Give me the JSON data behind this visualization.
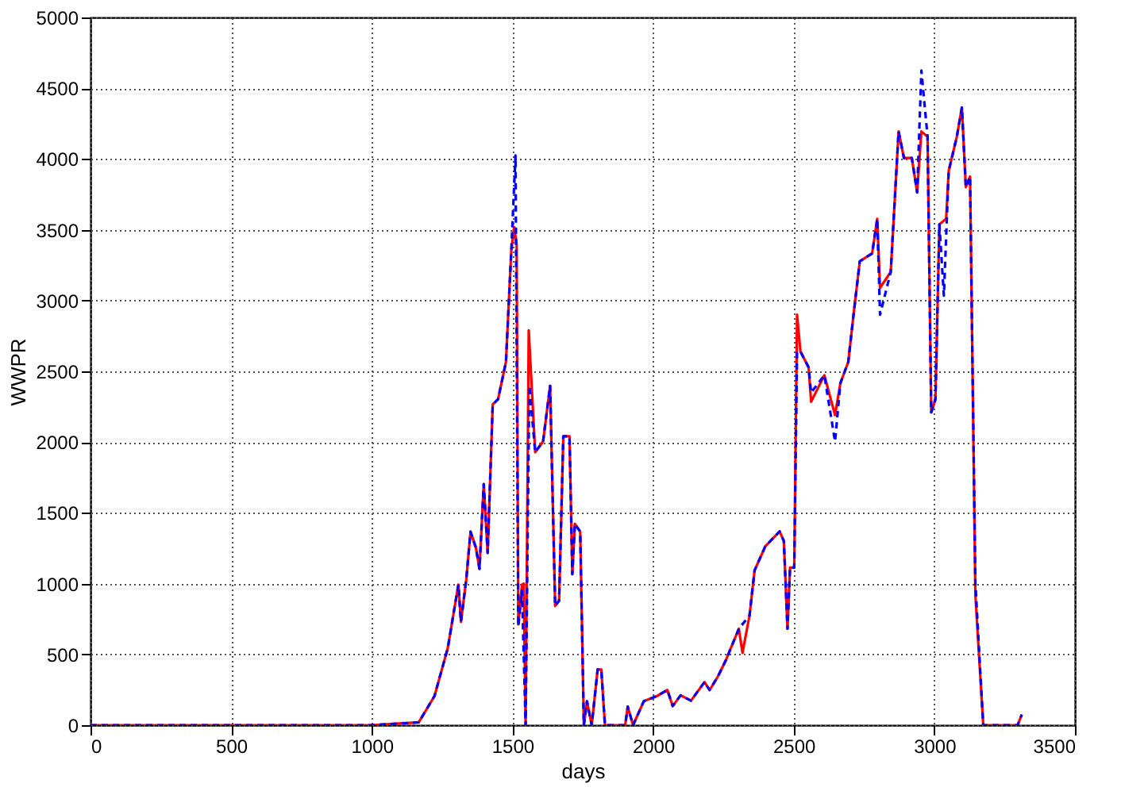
{
  "chart_data": {
    "type": "line",
    "xlabel": "days",
    "ylabel": "WWPR",
    "xlim": [
      0,
      3500
    ],
    "xticks": [
      0,
      500,
      1000,
      1500,
      2000,
      2500,
      3000,
      3500
    ],
    "ylim": [
      0,
      5000
    ],
    "yticks": [
      0,
      500,
      1000,
      1500,
      2000,
      2500,
      3000,
      3500,
      4000,
      4500,
      5000
    ],
    "grid": true,
    "series": [
      {
        "color": "#ff0000",
        "line_style": "solid",
        "x": [
          0,
          998,
          1167,
          1223,
          1270,
          1308,
          1317,
          1336,
          1351,
          1370,
          1383,
          1398,
          1412,
          1430,
          1449,
          1477,
          1496,
          1506,
          1515,
          1521,
          1534,
          1540,
          1547,
          1558,
          1581,
          1609,
          1634,
          1652,
          1666,
          1681,
          1703,
          1713,
          1722,
          1741,
          1754,
          1765,
          1782,
          1803,
          1816,
          1829,
          1901,
          1910,
          1929,
          1967,
          2014,
          2051,
          2070,
          2098,
          2135,
          2183,
          2201,
          2230,
          2258,
          2305,
          2318,
          2343,
          2361,
          2399,
          2450,
          2465,
          2478,
          2487,
          2502,
          2512,
          2524,
          2553,
          2562,
          2609,
          2647,
          2666,
          2694,
          2713,
          2735,
          2779,
          2797,
          2807,
          2845,
          2873,
          2892,
          2920,
          2939,
          2954,
          2976,
          2989,
          3004,
          3018,
          3042,
          3051,
          3080,
          3098,
          3112,
          3127,
          3146,
          3174,
          3296,
          3311
        ],
        "values": [
          0,
          0,
          20,
          206,
          543,
          993,
          730,
          1030,
          1367,
          1255,
          1105,
          1704,
          1217,
          2266,
          2303,
          2566,
          3352,
          3520,
          3400,
          712,
          993,
          1000,
          0,
          2790,
          1929,
          2004,
          2397,
          843,
          880,
          2041,
          2041,
          1067,
          1423,
          1367,
          0,
          169,
          0,
          393,
          393,
          0,
          0,
          131,
          0,
          169,
          206,
          248,
          135,
          211,
          173,
          305,
          248,
          342,
          455,
          681,
          511,
          775,
          1094,
          1263,
          1369,
          1301,
          681,
          1113,
          1113,
          2900,
          2640,
          2528,
          2285,
          2472,
          2191,
          2416,
          2566,
          2903,
          3277,
          3333,
          3577,
          3090,
          3202,
          4195,
          4007,
          4007,
          3764,
          4195,
          4157,
          2210,
          2303,
          3539,
          3577,
          3914,
          4157,
          4363,
          3801,
          3876,
          918,
          0,
          0,
          75
        ]
      },
      {
        "color": "#0000ff",
        "line_style": "dashed",
        "x": [
          0,
          998,
          1167,
          1223,
          1270,
          1308,
          1317,
          1336,
          1351,
          1370,
          1383,
          1398,
          1412,
          1430,
          1449,
          1477,
          1496,
          1511,
          1521,
          1534,
          1547,
          1560,
          1581,
          1609,
          1634,
          1652,
          1666,
          1681,
          1703,
          1713,
          1722,
          1741,
          1754,
          1765,
          1782,
          1803,
          1816,
          1829,
          1901,
          1910,
          1929,
          1967,
          2014,
          2051,
          2070,
          2098,
          2135,
          2183,
          2201,
          2230,
          2258,
          2305,
          2343,
          2361,
          2399,
          2450,
          2465,
          2478,
          2487,
          2502,
          2512,
          2524,
          2553,
          2562,
          2609,
          2647,
          2666,
          2694,
          2713,
          2735,
          2779,
          2797,
          2807,
          2845,
          2873,
          2892,
          2920,
          2939,
          2954,
          2976,
          2989,
          3004,
          3018,
          3034,
          3051,
          3080,
          3098,
          3112,
          3127,
          3146,
          3174,
          3296,
          3311
        ],
        "values": [
          0,
          0,
          20,
          206,
          543,
          993,
          730,
          1030,
          1367,
          1255,
          1105,
          1704,
          1217,
          2266,
          2303,
          2566,
          3352,
          4026,
          700,
          950,
          0,
          2400,
          1929,
          2004,
          2397,
          843,
          880,
          2041,
          2041,
          1067,
          1423,
          1367,
          0,
          169,
          0,
          393,
          393,
          0,
          0,
          131,
          0,
          169,
          206,
          248,
          135,
          211,
          173,
          305,
          248,
          342,
          455,
          681,
          775,
          1094,
          1263,
          1369,
          1301,
          681,
          1113,
          1113,
          2640,
          2640,
          2528,
          2350,
          2472,
          2004,
          2416,
          2566,
          2903,
          3277,
          3333,
          3577,
          2900,
          3202,
          4195,
          4007,
          4007,
          3764,
          4625,
          4157,
          2210,
          2303,
          3539,
          3034,
          3914,
          4157,
          4363,
          3801,
          3876,
          1000,
          0,
          0,
          75
        ]
      }
    ]
  }
}
